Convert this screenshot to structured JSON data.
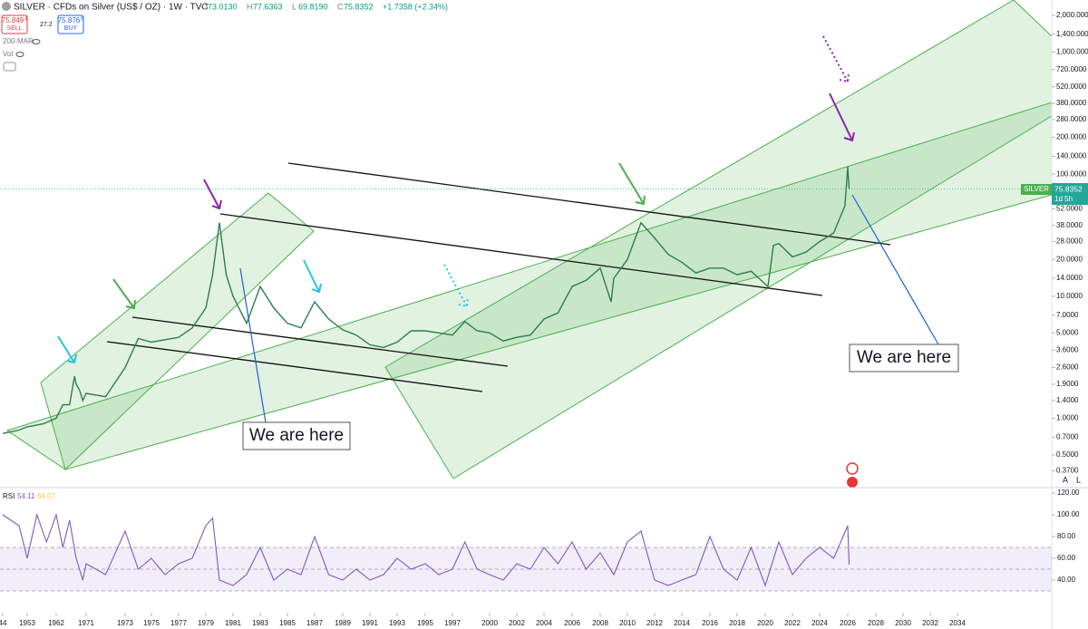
{
  "header": {
    "symbol": "SILVER · CFDs on Silver (US$ / OZ) · 1W · TVC",
    "ohlc": [
      {
        "label": "O",
        "value": "73.0130"
      },
      {
        "label": "H",
        "value": "77.6363"
      },
      {
        "label": "L",
        "value": "69.8190"
      },
      {
        "label": "C",
        "value": "75.8352"
      }
    ],
    "change": "+1.7358 (+2.34%)",
    "sell": {
      "price": "75.849",
      "sup": "4",
      "label": "SELL"
    },
    "spread": "27.2",
    "buy": {
      "price": "75.876",
      "sup": "6",
      "label": "BUY"
    },
    "indicators": [
      "200-MAR",
      "Vol"
    ]
  },
  "price_label": {
    "name": "SILVER",
    "value": "75.8352",
    "countdown": "1d 5h"
  },
  "annotations": [
    "We are here",
    "We are here"
  ],
  "rsi_legend": {
    "name": "RSI",
    "value": "54.11",
    "ma": "64.07"
  },
  "chart_data": [
    {
      "type": "line",
      "log_scale": true,
      "color": "#2e7d4f",
      "x": [
        1944,
        1950,
        1953,
        1958,
        1962,
        1964,
        1966,
        1967.5,
        1968,
        1969,
        1970,
        1971,
        1972,
        1973,
        1974,
        1975,
        1976,
        1977,
        1978,
        1979,
        1979.5,
        1980,
        1980.5,
        1981,
        1982,
        1983,
        1984,
        1985,
        1986,
        1987,
        1988,
        1989,
        1990,
        1991,
        1992,
        1993,
        1994,
        1995,
        1996,
        1997,
        1998,
        1999,
        2000,
        2001,
        2002,
        2003,
        2004,
        2005,
        2006,
        2007,
        2008,
        2008.8,
        2009,
        2010,
        2011,
        2012,
        2013,
        2014,
        2015,
        2016,
        2017,
        2018,
        2019,
        2020.2,
        2020.6,
        2021,
        2022,
        2023,
        2024,
        2025,
        2025.8,
        2026,
        2026.1
      ],
      "values": [
        0.75,
        0.8,
        0.85,
        0.9,
        1.0,
        1.29,
        1.29,
        2.2,
        1.9,
        1.7,
        1.4,
        1.6,
        1.5,
        2.6,
        4.5,
        4.2,
        4.4,
        4.6,
        5.5,
        8,
        15,
        40,
        15,
        10,
        6,
        12,
        8,
        6,
        5.5,
        9,
        6.5,
        5.3,
        4.8,
        4,
        3.8,
        4.2,
        5.2,
        5.2,
        5,
        4.8,
        6.2,
        5.2,
        5,
        4.3,
        4.6,
        4.8,
        6.5,
        7.3,
        12,
        13.5,
        17,
        9,
        14,
        20,
        40,
        30,
        22,
        19,
        15.5,
        17,
        17,
        15,
        16,
        12,
        26,
        27,
        21,
        23,
        28,
        33,
        55,
        115,
        75.8352
      ],
      "last": 75.8352,
      "xlim": [
        1941,
        2037
      ],
      "xticks": [
        {
          "value": 1944,
          "label": "44"
        },
        1953,
        1962,
        1971,
        1973,
        1975,
        1977,
        1979,
        1981,
        1983,
        1985,
        1987,
        1989,
        1991,
        1993,
        1995,
        1997,
        2000,
        2002,
        2004,
        2006,
        2008,
        2010,
        2012,
        2014,
        2016,
        2018,
        2020,
        2022,
        2024,
        2026,
        2028,
        2030,
        2032,
        2034
      ],
      "ylim": [
        0.27,
        2675
      ],
      "yticks": [
        {
          "value": 2000,
          "label": "2,000.0000"
        },
        {
          "value": 1400,
          "label": "1,400.0000"
        },
        {
          "value": 1000,
          "label": "1,000.0000"
        },
        {
          "value": 720,
          "label": "720.0000"
        },
        {
          "value": 520,
          "label": "520.0000"
        },
        {
          "value": 380,
          "label": "380.0000"
        },
        {
          "value": 280,
          "label": "280.0000"
        },
        {
          "value": 200,
          "label": "200.0000"
        },
        {
          "value": 140,
          "label": "140.0000"
        },
        {
          "value": 100,
          "label": "100.0000"
        },
        {
          "value": 52,
          "label": "52.0000"
        },
        {
          "value": 38,
          "label": "38.0000"
        },
        {
          "value": 28,
          "label": "28.0000"
        },
        {
          "value": 20,
          "label": "20.0000"
        },
        {
          "value": 14,
          "label": "14.0000"
        },
        {
          "value": 10,
          "label": "10.0000"
        },
        {
          "value": 7,
          "label": "7.0000"
        },
        {
          "value": 5,
          "label": "5.0000"
        },
        {
          "value": 3.6,
          "label": "3.6000"
        },
        {
          "value": 2.6,
          "label": "2.6000"
        },
        {
          "value": 1.9,
          "label": "1.9000"
        },
        {
          "value": 1.4,
          "label": "1.4000"
        },
        {
          "value": 1,
          "label": "1.0000"
        },
        {
          "value": 0.7,
          "label": "0.7000"
        },
        {
          "value": 0.5,
          "label": "0.5000"
        },
        {
          "value": 0.37,
          "label": "0.3700"
        }
      ]
    },
    {
      "type": "line",
      "color": "#7e57c2",
      "levels": [
        30,
        50,
        70
      ],
      "x": [
        1944,
        1950,
        1953,
        1956,
        1959,
        1962,
        1964,
        1966,
        1968,
        1970,
        1971,
        1972,
        1973,
        1974,
        1975,
        1976,
        1977,
        1978,
        1979,
        1979.5,
        1980,
        1981,
        1982,
        1983,
        1984,
        1985,
        1986,
        1987,
        1988,
        1989,
        1990,
        1991,
        1992,
        1993,
        1994,
        1995,
        1996,
        1997,
        1998,
        1999,
        2000,
        2001,
        2002,
        2003,
        2004,
        2005,
        2006,
        2007,
        2008,
        2009,
        2010,
        2011,
        2012,
        2013,
        2014,
        2015,
        2016,
        2017,
        2018,
        2019,
        2020,
        2021,
        2022,
        2023,
        2024,
        2025,
        2025.5,
        2026,
        2026.1
      ],
      "series": [
        {
          "name": "RSI",
          "color": "#7e57c2",
          "values": [
            100,
            90,
            60,
            100,
            75,
            100,
            70,
            95,
            60,
            40,
            55,
            45,
            85,
            50,
            60,
            45,
            55,
            60,
            90,
            97,
            40,
            35,
            45,
            70,
            40,
            50,
            45,
            80,
            45,
            40,
            50,
            40,
            45,
            60,
            50,
            55,
            45,
            50,
            75,
            50,
            45,
            40,
            55,
            50,
            70,
            55,
            75,
            50,
            65,
            45,
            75,
            85,
            40,
            35,
            40,
            45,
            80,
            50,
            40,
            70,
            35,
            75,
            45,
            60,
            70,
            60,
            75,
            90,
            54.11
          ]
        }
      ],
      "ylim": [
        10,
        125
      ],
      "yticks": [
        {
          "value": 120,
          "label": "120.00"
        },
        {
          "value": 100,
          "label": "100.00"
        },
        {
          "value": 80,
          "label": "80.00"
        },
        {
          "value": 60,
          "label": "60.00"
        },
        {
          "value": 40,
          "label": "40.00"
        }
      ]
    }
  ]
}
